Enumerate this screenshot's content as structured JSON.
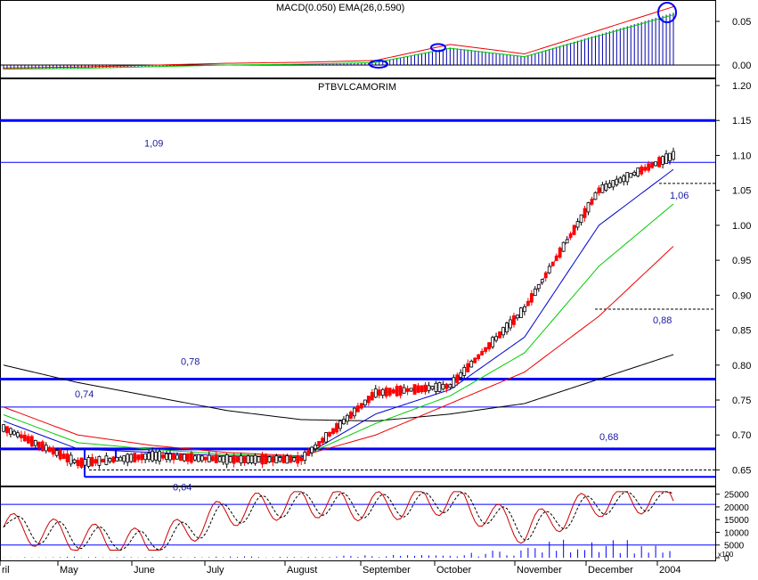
{
  "colors": {
    "frame": "#000000",
    "level_line": "#0000ff",
    "level_label": "#1a1aa0",
    "candle_up": "#000000",
    "candle_down": "#ff0000",
    "ma_fast": "#cc00cc",
    "ma_blue": "#0000cc",
    "ma_green": "#00cc00",
    "ma_red": "#ee0000",
    "ma_black": "#000000",
    "macd_hist": "#0000aa",
    "circle": "#0000ff",
    "stoch_k": "#cc0000",
    "stoch_d": "#000000",
    "volume": "#0000ff"
  },
  "titles": {
    "macd_panel": "MACD(0.050) EMA(26,0.590)",
    "main_panel": "PTBVLCAMORIM"
  },
  "x_axis": {
    "labels": [
      "ril",
      "May",
      "June",
      "July",
      "August",
      "September",
      "October",
      "November",
      "December",
      "2004"
    ]
  },
  "chart_data": [
    {
      "type": "bar",
      "panel": "macd-histogram",
      "title": "MACD(0.050) EMA(26,0.590)",
      "y_ticks": [
        "0.05",
        "0.00"
      ],
      "ylim": [
        -0.01,
        0.075
      ],
      "months": [
        "Apr",
        "May",
        "Jun",
        "Jul",
        "Aug",
        "Sep",
        "Oct",
        "Nov",
        "Dec",
        "Jan"
      ],
      "values": [
        -0.005,
        -0.004,
        -0.002,
        0.0,
        0.001,
        0.003,
        0.02,
        0.01,
        0.035,
        0.06
      ]
    },
    {
      "type": "line",
      "panel": "price",
      "title": "PTBVLCAMORIM",
      "y_ticks": [
        "1.20",
        "1.15",
        "1.10",
        "1.05",
        "1.00",
        "0.95",
        "0.90",
        "0.85",
        "0.80",
        "0.75",
        "0.70",
        "0.65"
      ],
      "ylim": [
        0.62,
        1.2
      ],
      "months": [
        "Apr",
        "May",
        "Jun",
        "Jul",
        "Aug",
        "Sep",
        "Oct",
        "Nov",
        "Dec",
        "Jan"
      ],
      "series": [
        {
          "values": [
            0.71,
            0.66,
            0.67,
            0.665,
            0.665,
            0.76,
            0.77,
            0.88,
            1.05,
            1.1
          ]
        },
        {
          "values": [
            0.72,
            0.68,
            0.675,
            0.67,
            0.668,
            0.73,
            0.765,
            0.84,
            1.0,
            1.08
          ]
        },
        {
          "values": [
            0.74,
            0.7,
            0.685,
            0.675,
            0.67,
            0.7,
            0.745,
            0.79,
            0.87,
            0.97
          ]
        },
        {
          "values": [
            0.8,
            0.775,
            0.755,
            0.735,
            0.722,
            0.72,
            0.73,
            0.745,
            0.78,
            0.815
          ]
        }
      ],
      "levels": [
        {
          "value": 1.15,
          "label": ""
        },
        {
          "value": 1.09,
          "label": "1,09"
        },
        {
          "value": 1.06,
          "label": "1,06"
        },
        {
          "value": 0.88,
          "label": "0,88"
        },
        {
          "value": 0.78,
          "label": "0,78"
        },
        {
          "value": 0.74,
          "label": "0,74"
        },
        {
          "value": 0.68,
          "label": "0,68"
        },
        {
          "value": 0.65,
          "label": ""
        },
        {
          "value": 0.64,
          "label": "0,64"
        }
      ]
    },
    {
      "type": "line",
      "panel": "oscillator-volume",
      "y_ticks": [
        "25000",
        "20000",
        "15000",
        "10000",
        "5000",
        "0"
      ],
      "ylim": [
        0,
        27000
      ],
      "unit": "x100",
      "months": [
        "Apr",
        "May",
        "Jun",
        "Jul",
        "Aug",
        "Sep",
        "Oct",
        "Nov",
        "Dec",
        "Jan"
      ],
      "oscillator": [
        12000,
        8000,
        5000,
        18000,
        22000,
        20000,
        23000,
        11000,
        22000,
        24000
      ],
      "volume": [
        100,
        300,
        200,
        400,
        200,
        900,
        600,
        3000,
        7000,
        2000
      ]
    }
  ]
}
